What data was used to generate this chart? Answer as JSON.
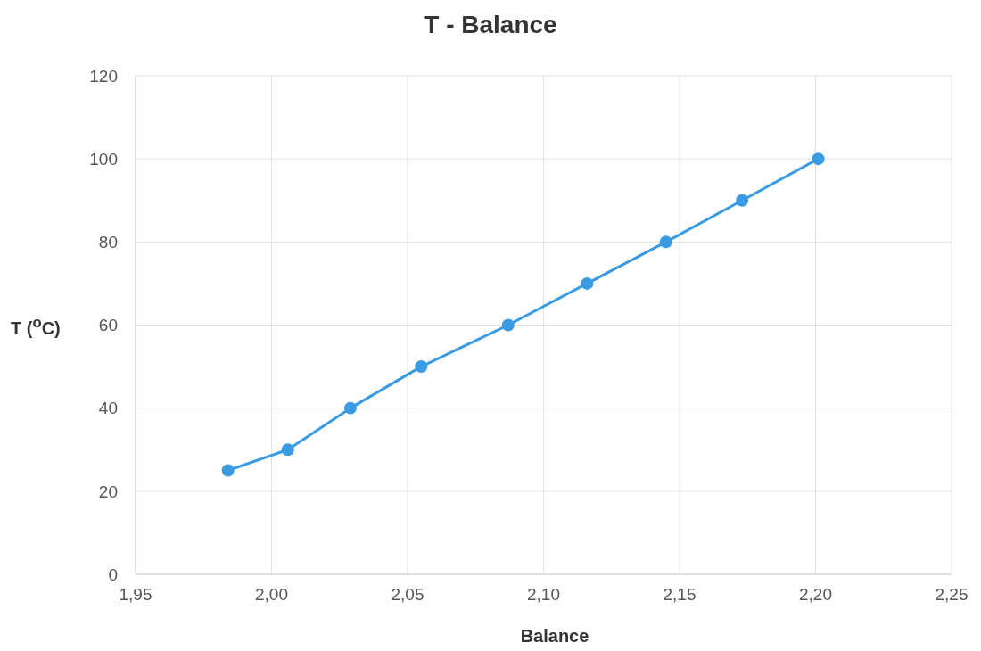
{
  "chart_data": {
    "type": "line",
    "title": "T - Balance",
    "xlabel": "Balance",
    "ylabel": "T ($^{o}$C)",
    "x": [
      1.984,
      2.006,
      2.029,
      2.055,
      2.087,
      2.116,
      2.145,
      2.173,
      2.201
    ],
    "series": [
      {
        "color": "#3a9be3",
        "values": [
          25,
          30,
          40,
          50,
          60,
          70,
          80,
          90,
          100
        ]
      }
    ],
    "xlim": [
      1.95,
      2.25
    ],
    "xticks": [
      {
        "value": 1.95,
        "label": "1,95"
      },
      {
        "value": 2.0,
        "label": "2,00"
      },
      {
        "value": 2.05,
        "label": "2,05"
      },
      {
        "value": 2.1,
        "label": "2,10"
      },
      {
        "value": 2.15,
        "label": "2,15"
      },
      {
        "value": 2.2,
        "label": "2,20"
      },
      {
        "value": 2.25,
        "label": "2,25"
      }
    ],
    "ylim": [
      0,
      120
    ],
    "yticks": [
      0,
      20,
      40,
      60,
      80,
      100,
      120
    ],
    "grid": true,
    "marker": "circle",
    "line_style": "solid"
  }
}
